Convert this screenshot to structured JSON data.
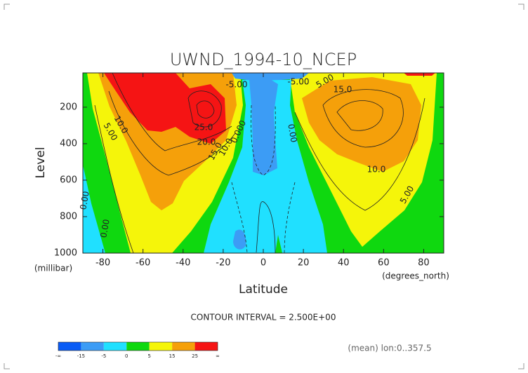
{
  "chart_data": {
    "type": "contour",
    "title": "UWND_1994-10_NCEP",
    "xlabel": "Latitude",
    "xunits": "(degrees_north)",
    "ylabel": "Level",
    "yunits": "(millibar)",
    "xlim": [
      -90,
      90
    ],
    "ylim": [
      1000,
      12
    ],
    "xticks": [
      -80,
      -60,
      -40,
      -20,
      0,
      20,
      40,
      60,
      80
    ],
    "yticks": [
      200,
      400,
      600,
      800,
      1000
    ],
    "contour_labels": [
      "-5.00",
      "-5.00",
      "5.00",
      "10.0",
      "25.0",
      "20.0",
      "15.0",
      "10.0",
      "0.000",
      "0.00",
      "5.00",
      "15.0",
      "10.0",
      "5.00",
      "0.00",
      "0.00"
    ],
    "contour_interval": "CONTOUR INTERVAL = 2.500E+00",
    "footnote": "(mean) lon:0..357.5",
    "colorbar": {
      "ticks": [
        "-∞",
        -15,
        -5,
        0,
        5,
        15,
        25,
        "∞"
      ],
      "colors": [
        "#0a5cf5",
        "#3c9cf5",
        "#20e0ff",
        "#0fd80f",
        "#f5f50a",
        "#f5a00a",
        "#f51414"
      ]
    }
  }
}
